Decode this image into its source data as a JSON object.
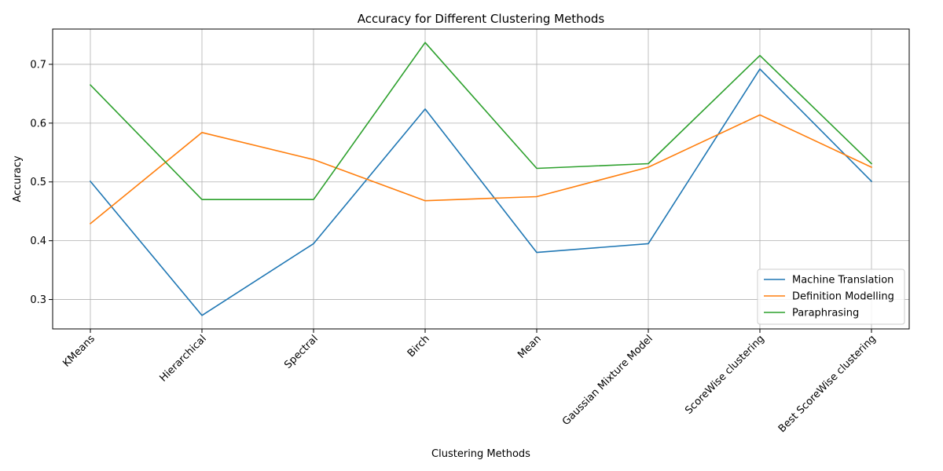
{
  "chart_data": {
    "type": "line",
    "title": "Accuracy for Different Clustering Methods",
    "xlabel": "Clustering Methods",
    "ylabel": "Accuracy",
    "categories": [
      "KMeans",
      "Hierarchical",
      "Spectral",
      "Birch",
      "Mean",
      "Gaussian Mixture Model",
      "ScoreWise clustering",
      "Best ScoreWise clustering"
    ],
    "yticks": [
      "0.3",
      "0.4",
      "0.5",
      "0.6",
      "0.7"
    ],
    "ylim": [
      0.25,
      0.76
    ],
    "grid": true,
    "legend_position": "lower-right",
    "series": [
      {
        "name": "Machine Translation",
        "color": "#1f77b4",
        "values": [
          0.501,
          0.273,
          0.395,
          0.624,
          0.38,
          0.395,
          0.692,
          0.501
        ]
      },
      {
        "name": "Definition Modelling",
        "color": "#ff7f0e",
        "values": [
          0.429,
          0.584,
          0.538,
          0.468,
          0.475,
          0.525,
          0.614,
          0.525
        ]
      },
      {
        "name": "Paraphrasing",
        "color": "#2ca02c",
        "values": [
          0.665,
          0.47,
          0.47,
          0.737,
          0.523,
          0.531,
          0.715,
          0.531
        ]
      }
    ]
  }
}
